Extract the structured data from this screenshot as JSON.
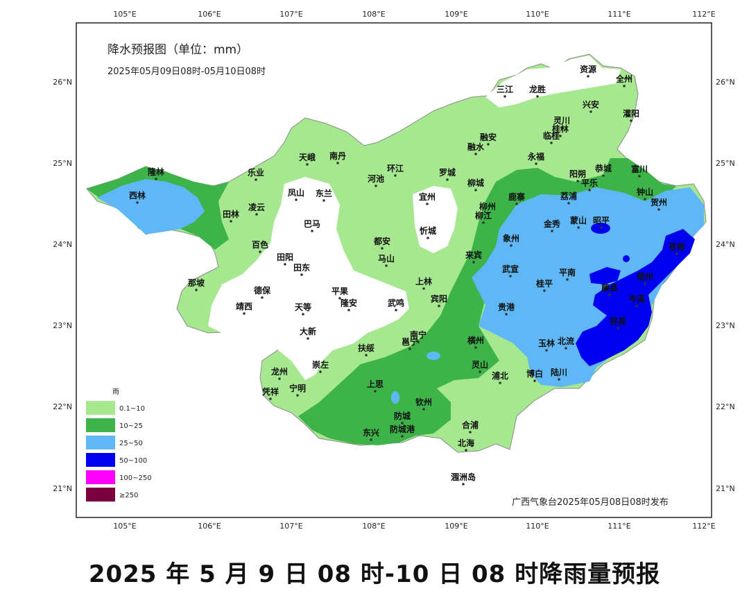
{
  "map": {
    "title": "降水预报图（单位：mm）",
    "subtitle": "2025年05月09日08时-05月10日08时",
    "issuer": "广西气象台2025年05月08日08时发布",
    "lon_ticks": [
      "105°E",
      "106°E",
      "107°E",
      "108°E",
      "109°E",
      "110°E",
      "111°E",
      "112°E"
    ],
    "lat_ticks": [
      "26°N",
      "25°N",
      "24°N",
      "23°N",
      "22°N",
      "21°N"
    ],
    "legend": {
      "title": "雨",
      "items": [
        {
          "label": "0.1~10",
          "color": "#a6e88f"
        },
        {
          "label": "10~25",
          "color": "#3db34a"
        },
        {
          "label": "25~50",
          "color": "#5fb8f5"
        },
        {
          "label": "50~100",
          "color": "#0000f0"
        },
        {
          "label": "100~250",
          "color": "#ff00ff"
        },
        {
          "label": "≥250",
          "color": "#7a0040"
        }
      ]
    },
    "cities": [
      "三江",
      "龙胜",
      "资源",
      "全州",
      "兴安",
      "灌阳",
      "灵川",
      "桂林",
      "临桂",
      "融安",
      "融水",
      "永福",
      "阳朔",
      "恭城",
      "富川",
      "天峨",
      "南丹",
      "环江",
      "罗城",
      "河池",
      "乐业",
      "隆林",
      "西林",
      "凤山",
      "东兰",
      "宜州",
      "柳城",
      "鹿寨",
      "荔浦",
      "平乐",
      "钟山",
      "贺州",
      "凌云",
      "田林",
      "巴马",
      "柳州",
      "柳江",
      "忻城",
      "金秀",
      "蒙山",
      "昭平",
      "都安",
      "象州",
      "百色",
      "田阳",
      "马山",
      "来宾",
      "武宣",
      "苍梧",
      "田东",
      "梧州",
      "平南",
      "桂平",
      "藤县",
      "那坡",
      "德保",
      "上林",
      "贵港",
      "靖西",
      "平果",
      "天等",
      "隆安",
      "武鸣",
      "宾阳",
      "岑溪",
      "容县",
      "大新",
      "北流",
      "南宁",
      "横州",
      "玉林",
      "扶绥",
      "邕宁",
      "龙州",
      "崇左",
      "灵山",
      "浦北",
      "博白",
      "陆川",
      "上思",
      "宁明",
      "凭祥",
      "钦州",
      "防城",
      "防城港",
      "东兴",
      "合浦",
      "北海",
      "涠洲岛"
    ]
  },
  "caption": "2025 年 5 月 9 日 08 时-10 日 08 时降雨量预报"
}
